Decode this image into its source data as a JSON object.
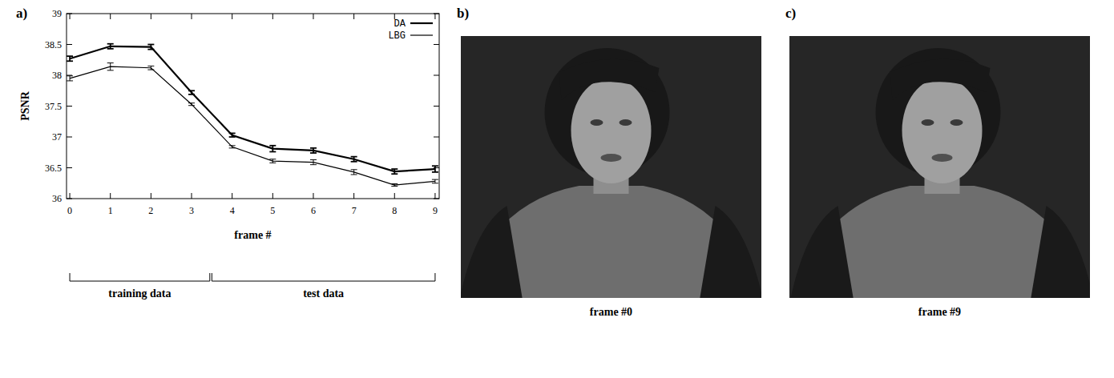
{
  "chart_data": {
    "type": "line",
    "panel_label": "a)",
    "x_label": "frame #",
    "y_label": "PSNR",
    "x": [
      0,
      1,
      2,
      3,
      4,
      5,
      6,
      7,
      8,
      9
    ],
    "series": [
      {
        "name": "DA",
        "color": "#000000",
        "line_style": "solid",
        "values": [
          38.27,
          38.47,
          38.46,
          37.72,
          37.03,
          36.81,
          36.78,
          36.64,
          36.44,
          36.48
        ],
        "error": [
          0.04,
          0.04,
          0.04,
          0.03,
          0.03,
          0.05,
          0.04,
          0.04,
          0.04,
          0.05
        ]
      },
      {
        "name": "LBG",
        "color": "#000000",
        "line_style": "solid",
        "values": [
          37.95,
          38.14,
          38.12,
          37.53,
          36.84,
          36.61,
          36.59,
          36.43,
          36.22,
          36.28
        ],
        "error": [
          0.04,
          0.06,
          0.03,
          0.02,
          0.02,
          0.03,
          0.04,
          0.04,
          0.02,
          0.03
        ]
      }
    ],
    "xlim": [
      -0.08,
      9.1
    ],
    "xticks": [
      0,
      1,
      2,
      3,
      4,
      5,
      6,
      7,
      8,
      9
    ],
    "ylim": [
      36,
      39
    ],
    "yticks": [
      36,
      36.5,
      37,
      37.5,
      38,
      38.5,
      39
    ],
    "grid": false,
    "legend": "top-right",
    "x_groups": [
      {
        "label": "training data",
        "from": 0,
        "to": 3.45
      },
      {
        "label": "test data",
        "from": 3.5,
        "to": 9
      }
    ]
  },
  "images": [
    {
      "panel_label": "b)",
      "caption": "frame #0"
    },
    {
      "panel_label": "c)",
      "caption": "frame #9"
    }
  ]
}
